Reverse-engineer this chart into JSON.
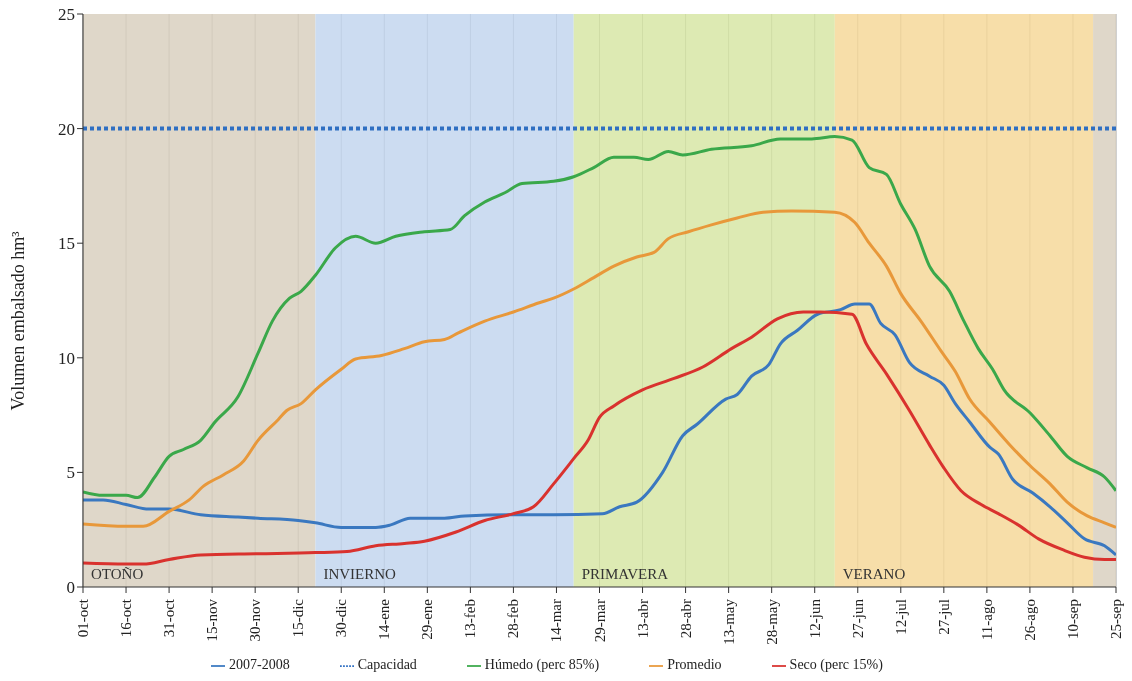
{
  "chart_data": {
    "type": "line",
    "ylabel": "Volumen embalsado hm³",
    "xlim": [
      "2007-10-01",
      "2008-09-25"
    ],
    "ylim": [
      0,
      25
    ],
    "yticks": [
      0,
      5,
      10,
      15,
      20,
      25
    ],
    "xticks": [
      {
        "value": "2007-10-01",
        "label": "01-oct"
      },
      {
        "value": "2007-10-16",
        "label": "16-oct"
      },
      {
        "value": "2007-10-31",
        "label": "31-oct"
      },
      {
        "value": "2007-11-15",
        "label": "15-nov"
      },
      {
        "value": "2007-11-30",
        "label": "30-nov"
      },
      {
        "value": "2007-12-15",
        "label": "15-dic"
      },
      {
        "value": "2007-12-30",
        "label": "30-dic"
      },
      {
        "value": "2008-01-14",
        "label": "14-ene"
      },
      {
        "value": "2008-01-29",
        "label": "29-ene"
      },
      {
        "value": "2008-02-13",
        "label": "13-feb"
      },
      {
        "value": "2008-02-28",
        "label": "28-feb"
      },
      {
        "value": "2008-03-14",
        "label": "14-mar"
      },
      {
        "value": "2008-03-29",
        "label": "29-mar"
      },
      {
        "value": "2008-04-13",
        "label": "13-abr"
      },
      {
        "value": "2008-04-28",
        "label": "28-abr"
      },
      {
        "value": "2008-05-13",
        "label": "13-may"
      },
      {
        "value": "2008-05-28",
        "label": "28-may"
      },
      {
        "value": "2008-06-12",
        "label": "12-jun"
      },
      {
        "value": "2008-06-27",
        "label": "27-jun"
      },
      {
        "value": "2008-07-12",
        "label": "12-jul"
      },
      {
        "value": "2008-07-27",
        "label": "27-jul"
      },
      {
        "value": "2008-08-11",
        "label": "11-ago"
      },
      {
        "value": "2008-08-26",
        "label": "26-ago"
      },
      {
        "value": "2008-09-10",
        "label": "10-sep"
      },
      {
        "value": "2008-09-25",
        "label": "25-sep"
      }
    ],
    "grid": "x",
    "legend": "bottom",
    "marker": "none",
    "bands": [
      {
        "axis": "x",
        "from": "2007-10-01",
        "to": "2007-12-21",
        "label": "OTOÑO",
        "color": "#d9d0c0"
      },
      {
        "axis": "x",
        "from": "2007-12-21",
        "to": "2008-03-20",
        "label": "INVIERNO",
        "color": "#c3d6ee"
      },
      {
        "axis": "x",
        "from": "2008-03-20",
        "to": "2008-06-19",
        "label": "PRIMAVERA",
        "color": "#d7e6a6"
      },
      {
        "axis": "x",
        "from": "2008-06-19",
        "to": "2008-09-17",
        "label": "VERANO",
        "color": "#f6d89a"
      },
      {
        "axis": "x",
        "from": "2008-09-17",
        "to": "2008-09-25",
        "label": null,
        "color": "#d9d0c0"
      }
    ],
    "series": [
      {
        "name": "2007-2008",
        "color": "#3a78c0",
        "x": [
          "2007-10-01",
          "2007-10-08",
          "2007-10-16",
          "2007-10-24",
          "2007-10-31",
          "2007-11-11",
          "2007-11-24",
          "2007-12-01",
          "2007-12-15",
          "2007-12-21",
          "2007-12-30",
          "2008-01-11",
          "2008-01-16",
          "2008-01-23",
          "2008-02-04",
          "2008-02-11",
          "2008-02-28",
          "2008-03-13",
          "2008-03-30",
          "2008-04-05",
          "2008-04-11",
          "2008-04-20",
          "2008-04-27",
          "2008-05-02",
          "2008-05-12",
          "2008-05-16",
          "2008-05-21",
          "2008-05-27",
          "2008-05-31",
          "2008-06-06",
          "2008-06-13",
          "2008-06-21",
          "2008-06-26",
          "2008-07-01",
          "2008-07-05",
          "2008-07-10",
          "2008-07-15",
          "2008-07-22",
          "2008-07-27",
          "2008-07-31",
          "2008-08-05",
          "2008-08-12",
          "2008-08-15",
          "2008-08-20",
          "2008-08-27",
          "2008-09-02",
          "2008-09-08",
          "2008-09-14",
          "2008-09-21",
          "2008-09-25"
        ],
        "values": [
          3.8,
          3.8,
          3.6,
          3.4,
          3.4,
          3.15,
          3.05,
          3.0,
          2.9,
          2.8,
          2.6,
          2.6,
          2.7,
          3.0,
          3.0,
          3.1,
          3.15,
          3.15,
          3.2,
          3.5,
          3.7,
          5.0,
          6.6,
          7.1,
          8.2,
          8.4,
          9.2,
          9.7,
          10.6,
          11.2,
          11.9,
          12.1,
          12.35,
          12.35,
          11.5,
          11.0,
          9.8,
          9.2,
          8.8,
          8.0,
          7.2,
          6.1,
          5.8,
          4.7,
          4.1,
          3.5,
          2.8,
          2.1,
          1.8,
          1.4
        ]
      },
      {
        "name": "Promedio",
        "color": "#e8983a",
        "x": [
          "2007-10-01",
          "2007-10-16",
          "2007-10-22",
          "2007-10-31",
          "2007-11-07",
          "2007-11-12",
          "2007-11-19",
          "2007-11-26",
          "2007-12-01",
          "2007-12-08",
          "2007-12-11",
          "2007-12-16",
          "2007-12-21",
          "2007-12-30",
          "2008-01-04",
          "2008-01-13",
          "2008-01-21",
          "2008-01-28",
          "2008-02-04",
          "2008-02-09",
          "2008-02-18",
          "2008-02-28",
          "2008-03-08",
          "2008-03-13",
          "2008-03-20",
          "2008-03-27",
          "2008-04-03",
          "2008-04-11",
          "2008-04-17",
          "2008-04-22",
          "2008-04-29",
          "2008-05-07",
          "2008-05-16",
          "2008-05-25",
          "2008-06-04",
          "2008-06-19",
          "2008-06-26",
          "2008-07-01",
          "2008-07-07",
          "2008-07-12",
          "2008-07-19",
          "2008-07-26",
          "2008-07-31",
          "2008-08-05",
          "2008-08-12",
          "2008-08-19",
          "2008-08-26",
          "2008-09-02",
          "2008-09-08",
          "2008-09-15",
          "2008-09-21",
          "2008-09-25"
        ],
        "values": [
          2.75,
          2.65,
          2.65,
          3.3,
          3.8,
          4.4,
          4.9,
          5.5,
          6.4,
          7.3,
          7.7,
          8.0,
          8.6,
          9.5,
          9.95,
          10.1,
          10.4,
          10.7,
          10.8,
          11.1,
          11.6,
          12.0,
          12.4,
          12.6,
          13.0,
          13.5,
          14.0,
          14.4,
          14.6,
          15.2,
          15.5,
          15.8,
          16.1,
          16.35,
          16.4,
          16.35,
          15.9,
          15.0,
          14.0,
          12.8,
          11.6,
          10.3,
          9.4,
          8.2,
          7.2,
          6.2,
          5.3,
          4.5,
          3.7,
          3.1,
          2.8,
          2.6
        ]
      },
      {
        "name": "Seco (perc 15%)",
        "color": "#d9322e",
        "x": [
          "2007-10-01",
          "2007-10-16",
          "2007-10-22",
          "2007-10-31",
          "2007-11-11",
          "2007-12-01",
          "2007-12-21",
          "2008-01-01",
          "2008-01-11",
          "2008-01-21",
          "2008-01-28",
          "2008-02-08",
          "2008-02-18",
          "2008-02-28",
          "2008-03-06",
          "2008-03-13",
          "2008-03-20",
          "2008-03-25",
          "2008-03-29",
          "2008-04-03",
          "2008-04-13",
          "2008-04-24",
          "2008-05-04",
          "2008-05-14",
          "2008-05-21",
          "2008-05-30",
          "2008-06-08",
          "2008-06-14",
          "2008-06-25",
          "2008-06-30",
          "2008-07-07",
          "2008-07-15",
          "2008-07-22",
          "2008-07-27",
          "2008-08-02",
          "2008-08-09",
          "2008-08-15",
          "2008-08-22",
          "2008-08-29",
          "2008-09-07",
          "2008-09-14",
          "2008-09-21",
          "2008-09-25"
        ],
        "values": [
          1.05,
          1.0,
          1.0,
          1.2,
          1.4,
          1.45,
          1.5,
          1.55,
          1.8,
          1.9,
          2.0,
          2.4,
          2.9,
          3.2,
          3.5,
          4.5,
          5.6,
          6.4,
          7.4,
          7.9,
          8.6,
          9.1,
          9.6,
          10.4,
          10.9,
          11.7,
          12.0,
          12.0,
          11.9,
          10.6,
          9.3,
          7.7,
          6.2,
          5.2,
          4.2,
          3.6,
          3.2,
          2.7,
          2.1,
          1.6,
          1.3,
          1.2,
          1.2
        ]
      },
      {
        "name": "Húmedo (perc 85%)",
        "color": "#3aa84a",
        "x": [
          "2007-10-01",
          "2007-10-08",
          "2007-10-16",
          "2007-10-20",
          "2007-10-26",
          "2007-10-31",
          "2007-11-05",
          "2007-11-11",
          "2007-11-16",
          "2007-11-24",
          "2007-12-01",
          "2007-12-06",
          "2007-12-12",
          "2007-12-16",
          "2007-12-21",
          "2007-12-28",
          "2008-01-04",
          "2008-01-11",
          "2008-01-18",
          "2008-01-28",
          "2008-02-06",
          "2008-02-11",
          "2008-02-18",
          "2008-02-25",
          "2008-03-02",
          "2008-03-13",
          "2008-03-20",
          "2008-03-27",
          "2008-04-03",
          "2008-04-10",
          "2008-04-15",
          "2008-04-22",
          "2008-04-27",
          "2008-05-07",
          "2008-05-21",
          "2008-05-31",
          "2008-06-11",
          "2008-06-19",
          "2008-06-25",
          "2008-07-01",
          "2008-07-07",
          "2008-07-12",
          "2008-07-17",
          "2008-07-22",
          "2008-07-29",
          "2008-08-03",
          "2008-08-08",
          "2008-08-13",
          "2008-08-17",
          "2008-08-26",
          "2008-09-02",
          "2008-09-08",
          "2008-09-15",
          "2008-09-21",
          "2008-09-25"
        ],
        "values": [
          4.15,
          4.0,
          4.0,
          3.9,
          4.8,
          5.7,
          6.0,
          6.4,
          7.2,
          8.3,
          10.2,
          11.6,
          12.6,
          12.9,
          13.6,
          14.8,
          15.3,
          15.0,
          15.3,
          15.5,
          15.6,
          16.2,
          16.8,
          17.2,
          17.6,
          17.7,
          17.9,
          18.3,
          18.75,
          18.75,
          18.65,
          19.0,
          18.85,
          19.1,
          19.25,
          19.55,
          19.55,
          19.65,
          19.5,
          18.3,
          18.0,
          16.7,
          15.6,
          14.0,
          12.9,
          11.6,
          10.4,
          9.5,
          8.6,
          7.6,
          6.6,
          5.7,
          5.2,
          4.8,
          4.2
        ]
      },
      {
        "name": "Capacidad",
        "color": "#2f6fc2",
        "line_style": "dotted",
        "x": [
          "2007-10-01",
          "2008-09-25"
        ],
        "values": [
          20,
          20
        ]
      }
    ]
  }
}
